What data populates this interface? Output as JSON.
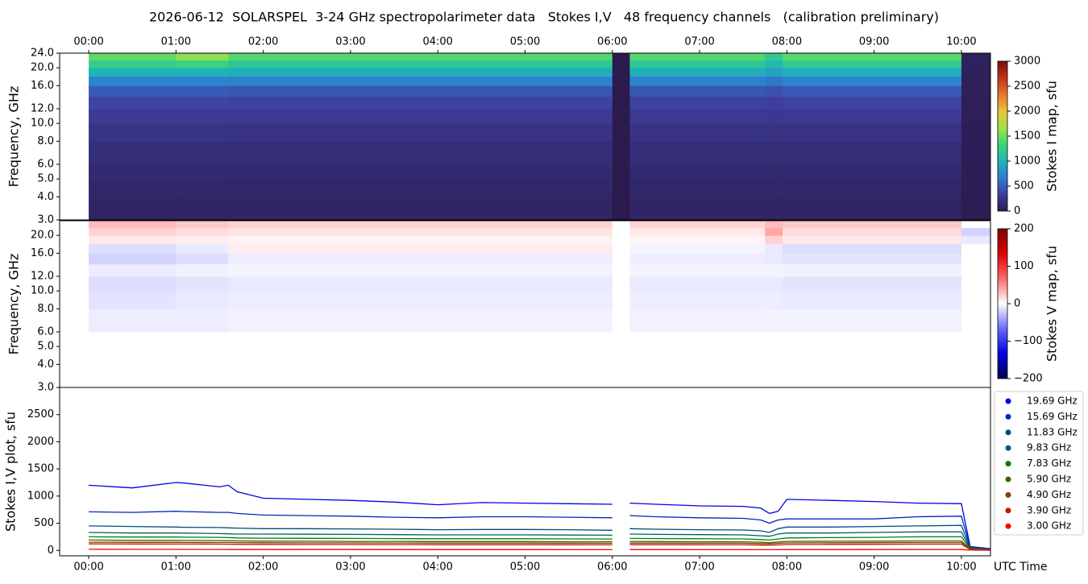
{
  "chart_data": [
    {
      "type": "heatmap",
      "title": "2026-06-12  SOLARSPEL  3-24 GHz spectropolarimeter data   Stokes I,V   48 frequency channels   (calibration preliminary)",
      "ylabel": "Frequency, GHz",
      "xlim": [
        -0.333,
        10.333
      ],
      "xticks": [
        {
          "value": 0,
          "label": "00:00"
        },
        {
          "value": 1,
          "label": "01:00"
        },
        {
          "value": 2,
          "label": "02:00"
        },
        {
          "value": 3,
          "label": "03:00"
        },
        {
          "value": 4,
          "label": "04:00"
        },
        {
          "value": 5,
          "label": "05:00"
        },
        {
          "value": 6,
          "label": "06:00"
        },
        {
          "value": 7,
          "label": "07:00"
        },
        {
          "value": 8,
          "label": "08:00"
        },
        {
          "value": 9,
          "label": "09:00"
        },
        {
          "value": 10,
          "label": "10:00"
        }
      ],
      "ylim": [
        3,
        24
      ],
      "log_y": true,
      "yticks": [
        {
          "value": 3,
          "label": "3.0"
        },
        {
          "value": 4,
          "label": "4.0"
        },
        {
          "value": 5,
          "label": "5.0"
        },
        {
          "value": 6,
          "label": "6.0"
        },
        {
          "value": 8,
          "label": "8.0"
        },
        {
          "value": 10,
          "label": "10.0"
        },
        {
          "value": 12,
          "label": "12.0"
        },
        {
          "value": 16,
          "label": "16.0"
        },
        {
          "value": 20,
          "label": "20.0"
        },
        {
          "value": 24,
          "label": "24.0"
        }
      ],
      "x_edges": [
        0,
        1.0,
        1.6,
        6.0,
        6.2,
        7.75,
        7.95,
        10.0,
        10.333
      ],
      "y_edges": [
        3,
        4,
        5,
        6,
        8,
        10,
        12,
        14,
        16,
        18,
        20,
        22,
        24
      ],
      "values": [
        [
          100,
          100,
          100,
          0,
          100,
          100,
          100,
          30
        ],
        [
          120,
          120,
          118,
          0,
          118,
          115,
          118,
          30
        ],
        [
          140,
          140,
          138,
          0,
          138,
          135,
          138,
          35
        ],
        [
          180,
          180,
          175,
          0,
          175,
          170,
          175,
          40
        ],
        [
          230,
          230,
          225,
          0,
          225,
          215,
          225,
          40
        ],
        [
          290,
          290,
          280,
          0,
          280,
          270,
          285,
          45
        ],
        [
          360,
          360,
          350,
          0,
          350,
          330,
          355,
          45
        ],
        [
          480,
          480,
          460,
          0,
          460,
          430,
          470,
          50
        ],
        [
          700,
          700,
          680,
          0,
          680,
          620,
          690,
          50
        ],
        [
          1000,
          1000,
          960,
          0,
          960,
          880,
          970,
          55
        ],
        [
          1250,
          1300,
          1180,
          0,
          1180,
          1050,
          1200,
          60
        ],
        [
          1450,
          1600,
          1400,
          0,
          1400,
          1200,
          1420,
          60
        ]
      ],
      "colorbar": {
        "label": "Stokes I map, sfu",
        "lim": [
          0,
          3000
        ],
        "ticks": [
          0,
          500,
          1000,
          1500,
          2000,
          2500,
          3000
        ],
        "colormap": [
          "#2b1a4d",
          "#3e3f9e",
          "#2f7fd0",
          "#1fb4b8",
          "#3dd57a",
          "#a4e04a",
          "#e8c53a",
          "#e9742a",
          "#c2331b",
          "#7a0e0e"
        ]
      }
    },
    {
      "type": "heatmap",
      "ylabel": "Frequency, GHz",
      "xlim": [
        -0.333,
        10.333
      ],
      "ylim": [
        3,
        24
      ],
      "log_y": true,
      "yticks": [
        {
          "value": 3,
          "label": "3.0"
        },
        {
          "value": 4,
          "label": "4.0"
        },
        {
          "value": 5,
          "label": "5.0"
        },
        {
          "value": 6,
          "label": "6.0"
        },
        {
          "value": 8,
          "label": "8.0"
        },
        {
          "value": 10,
          "label": "10.0"
        },
        {
          "value": 12,
          "label": "12.0"
        },
        {
          "value": 16,
          "label": "16.0"
        },
        {
          "value": 20,
          "label": "20.0"
        }
      ],
      "x_edges": [
        0,
        1.0,
        1.6,
        6.0,
        6.2,
        7.75,
        7.95,
        10.0,
        10.333
      ],
      "y_edges": [
        3,
        4,
        5,
        6,
        8,
        10,
        12,
        14,
        16,
        18,
        20,
        22,
        24
      ],
      "values": [
        [
          0,
          0,
          0,
          0,
          0,
          0,
          0,
          0
        ],
        [
          0,
          0,
          0,
          0,
          0,
          0,
          0,
          0
        ],
        [
          0,
          0,
          0,
          0,
          0,
          0,
          0,
          0
        ],
        [
          -8,
          -8,
          -6,
          0,
          -6,
          -5,
          -6,
          0
        ],
        [
          -12,
          -10,
          -8,
          0,
          -8,
          -8,
          -10,
          0
        ],
        [
          -15,
          -12,
          -10,
          0,
          -10,
          -10,
          -12,
          0
        ],
        [
          -8,
          -6,
          -5,
          0,
          -5,
          -5,
          -6,
          0
        ],
        [
          -20,
          -15,
          -8,
          0,
          -8,
          -10,
          -12,
          0
        ],
        [
          -15,
          -10,
          8,
          0,
          -5,
          -10,
          -15,
          0
        ],
        [
          10,
          8,
          6,
          0,
          5,
          20,
          10,
          -10
        ],
        [
          20,
          15,
          12,
          0,
          10,
          40,
          15,
          -20
        ],
        [
          30,
          25,
          20,
          0,
          20,
          30,
          25,
          0
        ]
      ],
      "colorbar": {
        "label": "Stokes V map, sfu",
        "lim": [
          -200,
          200
        ],
        "ticks": [
          {
            "value": -200,
            "label": "−200"
          },
          {
            "value": -100,
            "label": "−100"
          },
          0,
          100,
          200
        ],
        "colormap": [
          "#00004c",
          "#0000e0",
          "#6a6aff",
          "#ffffff",
          "#ff6a6a",
          "#e00000",
          "#800000"
        ]
      }
    },
    {
      "type": "line",
      "ylabel": "Stokes I,V plot, sfu",
      "xlabel": "UTC Time",
      "xlim": [
        -0.333,
        10.333
      ],
      "xticks": [
        {
          "value": 0,
          "label": "00:00"
        },
        {
          "value": 1,
          "label": "01:00"
        },
        {
          "value": 2,
          "label": "02:00"
        },
        {
          "value": 3,
          "label": "03:00"
        },
        {
          "value": 4,
          "label": "04:00"
        },
        {
          "value": 5,
          "label": "05:00"
        },
        {
          "value": 6,
          "label": "06:00"
        },
        {
          "value": 7,
          "label": "07:00"
        },
        {
          "value": 8,
          "label": "08:00"
        },
        {
          "value": 9,
          "label": "09:00"
        },
        {
          "value": 10,
          "label": "10:00"
        }
      ],
      "ylim": [
        -100,
        3000
      ],
      "yticks": [
        0,
        500,
        1000,
        1500,
        2000,
        2500
      ],
      "legend": "right",
      "x": [
        0,
        0.5,
        1.0,
        1.1,
        1.5,
        1.6,
        1.7,
        2,
        2.5,
        3,
        3.5,
        4,
        4.5,
        5,
        5.5,
        6.0,
        6.1,
        6.2,
        6.5,
        7,
        7.5,
        7.7,
        7.8,
        7.9,
        8.0,
        8.5,
        9,
        9.5,
        10.0,
        10.1,
        10.333
      ],
      "series": [
        {
          "name": "19.69 GHz",
          "color": "#0000e6",
          "values": [
            1200,
            1150,
            1250,
            1240,
            1170,
            1200,
            1080,
            960,
            940,
            920,
            890,
            840,
            880,
            870,
            860,
            850,
            null,
            870,
            850,
            820,
            810,
            780,
            680,
            720,
            940,
            920,
            900,
            870,
            860,
            70,
            30
          ]
        },
        {
          "name": "15.69 GHz",
          "color": "#0026c0",
          "values": [
            710,
            700,
            720,
            715,
            700,
            700,
            680,
            650,
            640,
            630,
            610,
            600,
            620,
            620,
            610,
            600,
            null,
            640,
            620,
            600,
            590,
            560,
            500,
            560,
            580,
            580,
            580,
            620,
            630,
            60,
            20
          ]
        },
        {
          "name": "11.83 GHz",
          "color": "#004c80",
          "values": [
            450,
            440,
            430,
            425,
            420,
            415,
            410,
            400,
            400,
            395,
            390,
            380,
            385,
            385,
            380,
            370,
            null,
            400,
            390,
            380,
            375,
            360,
            330,
            400,
            430,
            430,
            440,
            450,
            460,
            50,
            20
          ]
        },
        {
          "name": "9.83 GHz",
          "color": "#006060",
          "values": [
            330,
            320,
            320,
            318,
            310,
            305,
            300,
            300,
            298,
            295,
            290,
            285,
            285,
            285,
            283,
            280,
            null,
            300,
            295,
            290,
            285,
            270,
            260,
            300,
            320,
            320,
            330,
            340,
            340,
            40,
            15
          ]
        },
        {
          "name": "7.83 GHz",
          "color": "#008000",
          "values": [
            250,
            245,
            245,
            243,
            240,
            235,
            230,
            225,
            222,
            220,
            218,
            215,
            215,
            215,
            212,
            210,
            null,
            220,
            218,
            215,
            212,
            200,
            190,
            210,
            230,
            235,
            240,
            250,
            250,
            30,
            10
          ]
        },
        {
          "name": "5.90 GHz",
          "color": "#4c6000",
          "values": [
            190,
            185,
            185,
            183,
            180,
            178,
            175,
            170,
            168,
            166,
            165,
            162,
            162,
            162,
            160,
            160,
            null,
            165,
            163,
            160,
            158,
            150,
            140,
            155,
            165,
            168,
            170,
            175,
            175,
            25,
            10
          ]
        },
        {
          "name": "4.90 GHz",
          "color": "#804000",
          "values": [
            150,
            148,
            147,
            146,
            145,
            144,
            143,
            140,
            138,
            137,
            136,
            135,
            135,
            134,
            133,
            132,
            null,
            135,
            134,
            133,
            132,
            125,
            120,
            130,
            138,
            140,
            142,
            145,
            145,
            20,
            8
          ]
        },
        {
          "name": "3.90 GHz",
          "color": "#c01a00",
          "values": [
            120,
            118,
            117,
            116,
            115,
            114,
            112,
            110,
            108,
            107,
            106,
            105,
            105,
            104,
            103,
            102,
            null,
            104,
            104,
            103,
            102,
            98,
            95,
            100,
            108,
            110,
            112,
            115,
            115,
            15,
            5
          ]
        },
        {
          "name": "3.00 GHz",
          "color": "#ff0000",
          "values": [
            20,
            18,
            18,
            17,
            17,
            16,
            16,
            15,
            15,
            15,
            14,
            14,
            14,
            14,
            13,
            13,
            null,
            14,
            14,
            13,
            13,
            12,
            12,
            13,
            14,
            14,
            15,
            15,
            15,
            5,
            2
          ]
        }
      ]
    }
  ]
}
